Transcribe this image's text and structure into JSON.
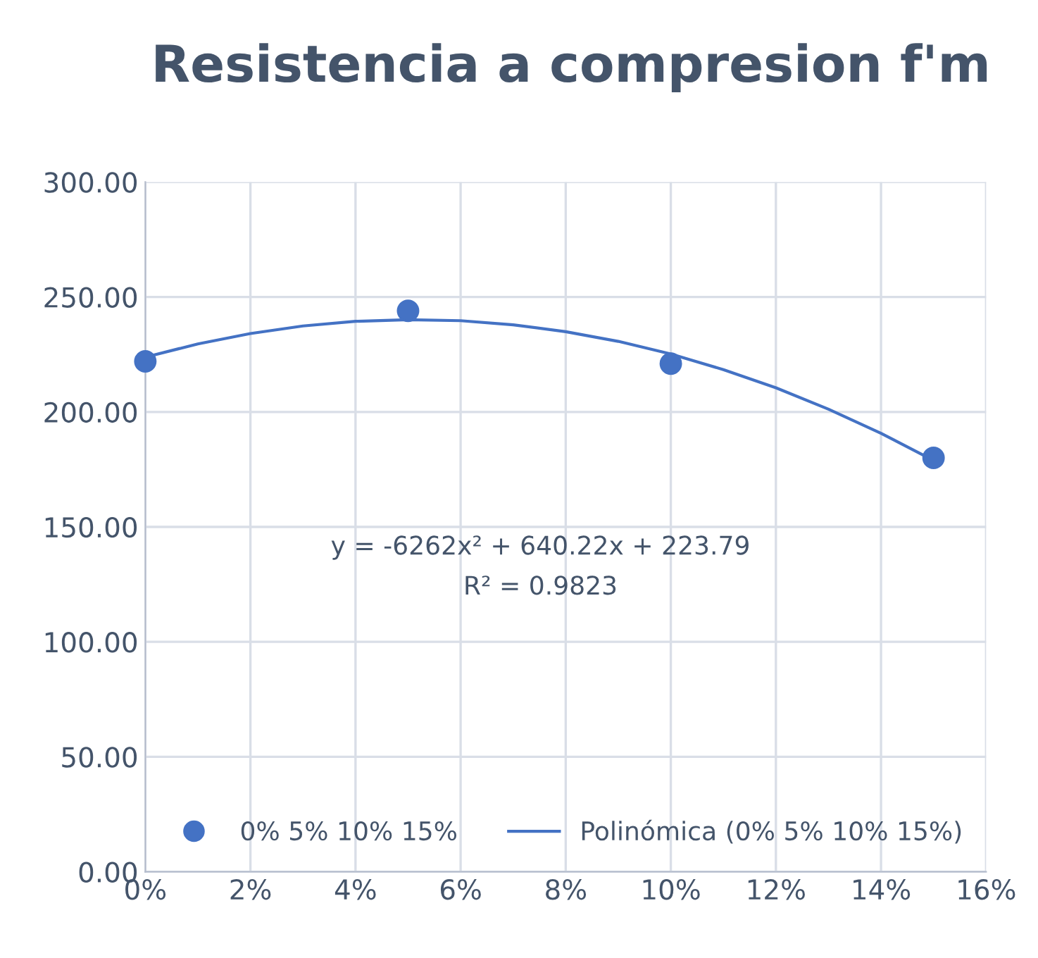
{
  "chart_data": {
    "type": "scatter",
    "title": "Resistencia a compresion f'm",
    "series": [
      {
        "name": "0% 5% 10% 15%",
        "color": "#4472c4",
        "marker": "circle",
        "x": [
          0,
          5,
          10,
          15
        ],
        "values": [
          222,
          244,
          221,
          180
        ]
      },
      {
        "name": "Polinómica (0% 5% 10% 15%)",
        "type": "line",
        "color": "#4472c4",
        "marker": "none",
        "line_style": "solid",
        "x": [
          0,
          1,
          2,
          3,
          4,
          5,
          6,
          7,
          8,
          9,
          10,
          11,
          12,
          13,
          14,
          15
        ],
        "values": [
          223.8,
          229.6,
          234.1,
          237.4,
          239.4,
          240.1,
          239.7,
          237.9,
          234.9,
          230.7,
          225.2,
          218.4,
          210.5,
          201.2,
          190.7,
          178.9
        ]
      }
    ],
    "xlim": [
      0,
      16
    ],
    "xticks": [
      {
        "value": 0,
        "label": "0%"
      },
      {
        "value": 2,
        "label": "2%"
      },
      {
        "value": 4,
        "label": "4%"
      },
      {
        "value": 6,
        "label": "6%"
      },
      {
        "value": 8,
        "label": "8%"
      },
      {
        "value": 10,
        "label": "10%"
      },
      {
        "value": 12,
        "label": "12%"
      },
      {
        "value": 14,
        "label": "14%"
      },
      {
        "value": 16,
        "label": "16%"
      }
    ],
    "ylim": [
      0,
      300
    ],
    "yticks": [
      {
        "value": 0,
        "label": "0.00"
      },
      {
        "value": 50,
        "label": "50.00"
      },
      {
        "value": 100,
        "label": "100.00"
      },
      {
        "value": 150,
        "label": "150.00"
      },
      {
        "value": 200,
        "label": "200.00"
      },
      {
        "value": 250,
        "label": "250.00"
      },
      {
        "value": 300,
        "label": "300.00"
      }
    ],
    "grid": true,
    "legend": "bottom",
    "annotations": [
      "y = -6262x² + 640.22x + 223.79",
      "R² = 0.9823"
    ]
  }
}
